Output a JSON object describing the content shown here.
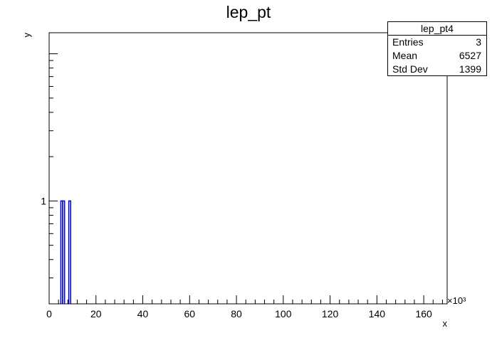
{
  "chart_data": {
    "type": "histogram",
    "title": "lep_pt",
    "xlabel": "x",
    "ylabel": "y",
    "x_multiplier_label": "×10³",
    "xlim": [
      0,
      170
    ],
    "ylim": [
      0.2,
      13.9
    ],
    "y_scale": "log",
    "x_ticks": [
      0,
      20,
      40,
      60,
      80,
      100,
      120,
      140,
      160
    ],
    "y_tick_labels": [
      {
        "value": 1,
        "label": "1"
      }
    ],
    "bins": [
      {
        "x_start": 5.0,
        "x_end": 5.8,
        "value": 1
      },
      {
        "x_start": 5.8,
        "x_end": 6.6,
        "value": 1
      },
      {
        "x_start": 8.4,
        "x_end": 9.2,
        "value": 1
      }
    ],
    "line_color": "#0000cc",
    "grid": false
  },
  "stats_box": {
    "name": "lep_pt4",
    "rows": [
      {
        "label": "Entries",
        "value": "3"
      },
      {
        "label": "Mean",
        "value": "6527"
      },
      {
        "label": "Std Dev",
        "value": "1399"
      }
    ]
  }
}
